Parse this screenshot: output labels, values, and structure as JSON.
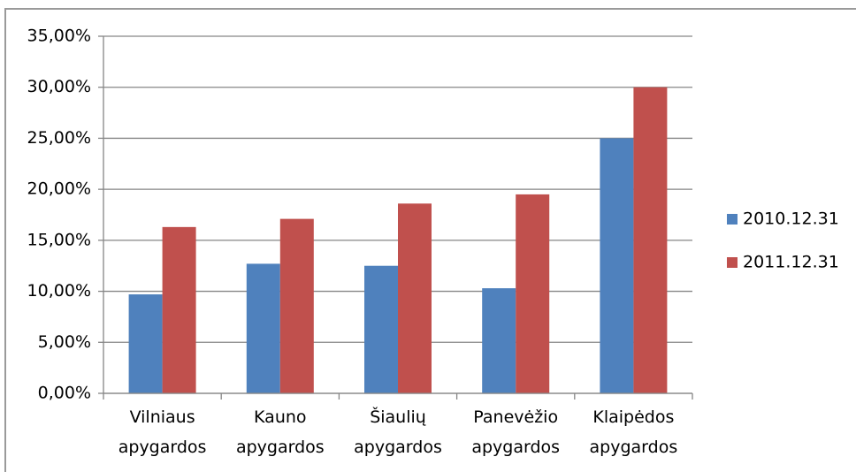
{
  "chart_data": {
    "type": "bar",
    "categories": [
      "Vilniaus apygardos",
      "Kauno apygardos",
      "Šiaulių apygardos",
      "Panevėžio apygardos",
      "Klaipėdos apygardos"
    ],
    "series": [
      {
        "name": "2010.12.31",
        "color": "#4f81bd",
        "values": [
          9.7,
          12.7,
          12.5,
          10.3,
          25.0
        ]
      },
      {
        "name": "2011.12.31",
        "color": "#c0504d",
        "values": [
          16.3,
          17.1,
          18.6,
          19.5,
          30.0
        ]
      }
    ],
    "ylim": [
      0,
      35
    ],
    "yticks": [
      {
        "value": 0,
        "label": "0,00%"
      },
      {
        "value": 5,
        "label": "5,00%"
      },
      {
        "value": 10,
        "label": "10,00%"
      },
      {
        "value": 15,
        "label": "15,00%"
      },
      {
        "value": 20,
        "label": "20,00%"
      },
      {
        "value": 25,
        "label": "25,00%"
      },
      {
        "value": 30,
        "label": "30,00%"
      },
      {
        "value": 35,
        "label": "35,00%"
      }
    ],
    "grid": true,
    "legend": "right"
  }
}
